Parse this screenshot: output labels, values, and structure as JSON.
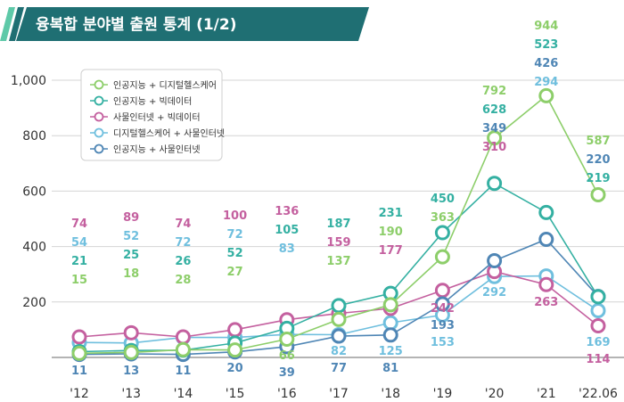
{
  "header": {
    "title": "융복합 분야별 출원 통계 (1/2)",
    "bar_color": "#1f6f73",
    "accent_color": "#5ec9a8"
  },
  "chart_data": {
    "type": "line",
    "title": "",
    "xlabel": "",
    "ylabel": "",
    "categories": [
      "'12",
      "'13",
      "'14",
      "'15",
      "'16",
      "'17",
      "'18",
      "'19",
      "'20",
      "'21",
      "'22.06"
    ],
    "y_ticks": [
      "200",
      "400",
      "600",
      "800",
      "1,000"
    ],
    "ylim": [
      0,
      1000
    ],
    "grid": true,
    "legend_position": "top-left",
    "series": [
      {
        "name": "인공지능 + 디지털헬스케어",
        "color": "#8dce6a",
        "values": [
          15,
          18,
          28,
          27,
          66,
          137,
          190,
          363,
          792,
          944,
          587
        ]
      },
      {
        "name": "인공지능 + 빅데이터",
        "color": "#34b0a2",
        "values": [
          21,
          25,
          26,
          52,
          105,
          187,
          231,
          450,
          628,
          523,
          219
        ]
      },
      {
        "name": "사물인터넷 + 빅데이터",
        "color": "#c4609f",
        "values": [
          74,
          89,
          74,
          100,
          136,
          159,
          177,
          242,
          310,
          263,
          114
        ]
      },
      {
        "name": "디지털헬스케어 + 사물인터넷",
        "color": "#6fbfde",
        "values": [
          54,
          52,
          72,
          72,
          83,
          82,
          125,
          153,
          292,
          294,
          169
        ]
      },
      {
        "name": "인공지능 + 사물인터넷",
        "color": "#4f86b5",
        "values": [
          11,
          13,
          11,
          20,
          39,
          77,
          81,
          193,
          349,
          426,
          220
        ]
      }
    ]
  }
}
